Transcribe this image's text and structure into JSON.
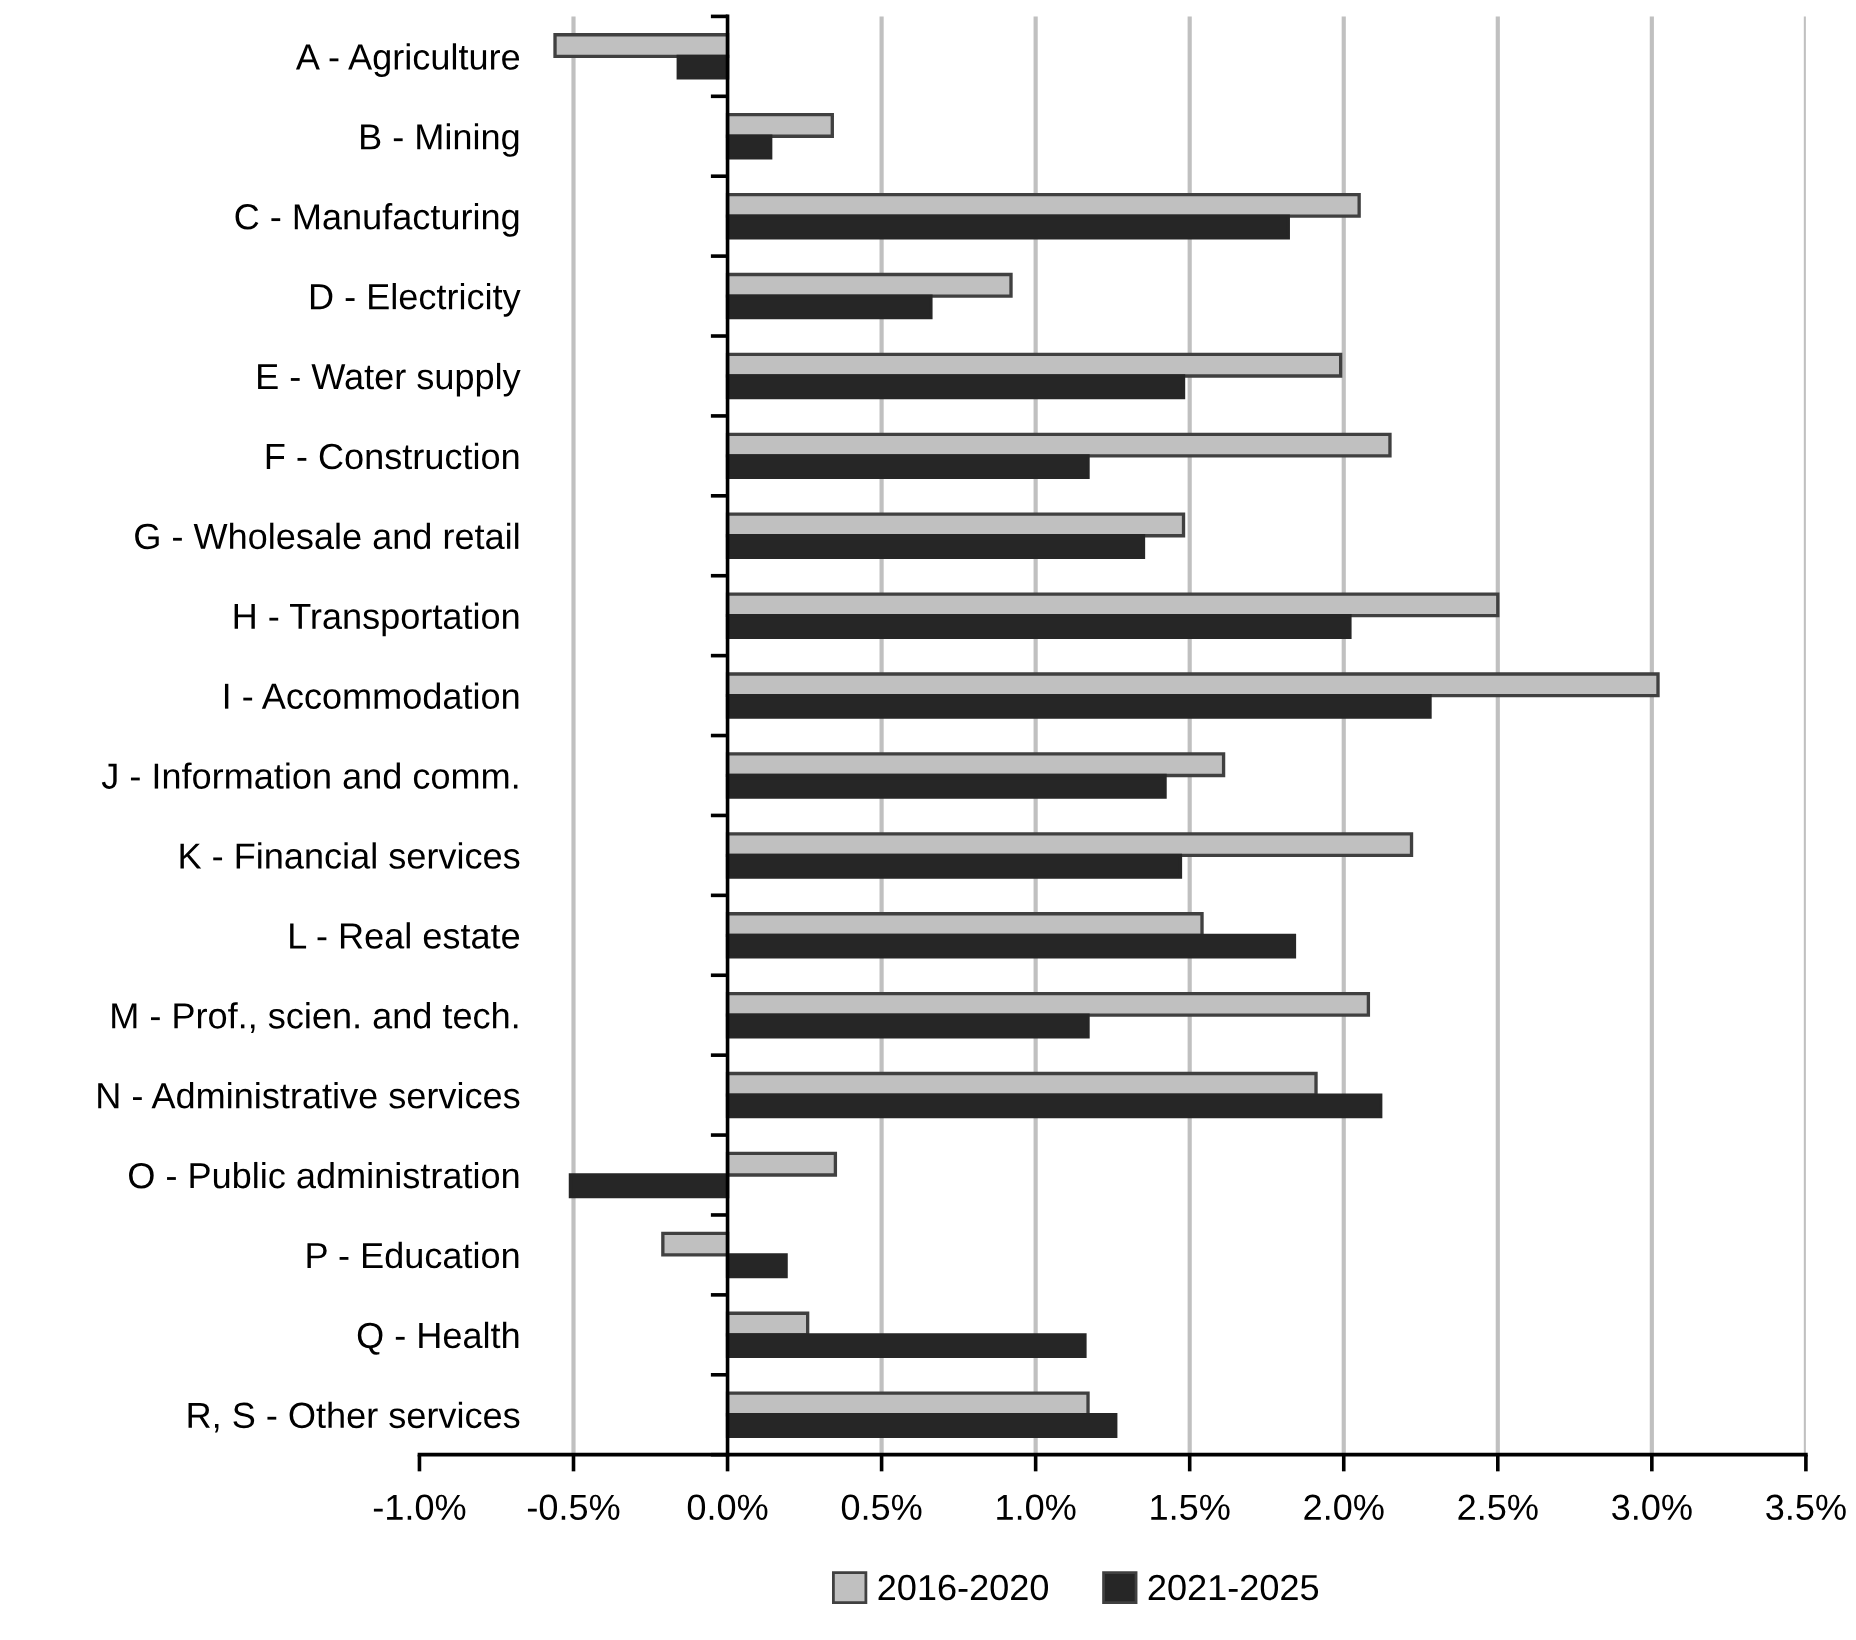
{
  "chart_data": {
    "type": "bar",
    "orientation": "horizontal",
    "categories": [
      "A - Agriculture",
      "B - Mining",
      "C - Manufacturing",
      "D - Electricity",
      "E - Water supply",
      "F - Construction",
      "G - Wholesale and retail",
      "H - Transportation",
      "I - Accommodation",
      "J - Information and comm.",
      "K - Financial services",
      "L - Real estate",
      "M - Prof., scien. and tech.",
      "N - Administrative services",
      "O - Public administration",
      "P - Education",
      "Q - Health",
      "R, S - Other services"
    ],
    "series": [
      {
        "name": "2016-2020",
        "color": "#c0c0c0",
        "values": [
          -0.56,
          0.34,
          2.05,
          0.92,
          1.99,
          2.15,
          1.48,
          2.5,
          3.02,
          1.61,
          2.22,
          1.54,
          2.08,
          1.91,
          0.35,
          -0.21,
          0.26,
          1.17
        ]
      },
      {
        "name": "2021-2025",
        "color": "#262626",
        "values": [
          -0.16,
          0.14,
          1.82,
          0.66,
          1.48,
          1.17,
          1.35,
          2.02,
          2.28,
          1.42,
          1.47,
          1.84,
          1.17,
          2.12,
          -0.51,
          0.19,
          1.16,
          1.26
        ]
      }
    ],
    "xlim": [
      -1.0,
      3.5
    ],
    "xticks": [
      {
        "value": -1.0,
        "label": "-1.0%"
      },
      {
        "value": -0.5,
        "label": "-0.5%"
      },
      {
        "value": 0.0,
        "label": "0.0%"
      },
      {
        "value": 0.5,
        "label": "0.5%"
      },
      {
        "value": 1.0,
        "label": "1.0%"
      },
      {
        "value": 1.5,
        "label": "1.5%"
      },
      {
        "value": 2.0,
        "label": "2.0%"
      },
      {
        "value": 2.5,
        "label": "2.5%"
      },
      {
        "value": 3.0,
        "label": "3.0%"
      },
      {
        "value": 3.5,
        "label": "3.5%"
      }
    ],
    "grid": "x",
    "legend": "bottom"
  }
}
